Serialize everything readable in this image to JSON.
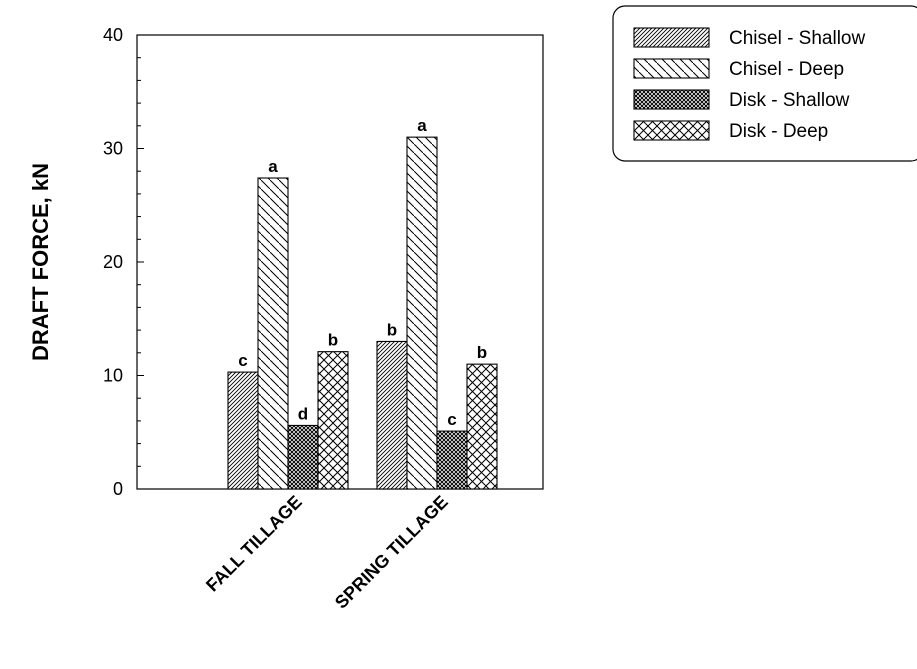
{
  "chart_data": {
    "type": "bar",
    "title": "",
    "xlabel": "",
    "ylabel": "DRAFT FORCE, kN",
    "ylim": [
      0,
      40
    ],
    "yticks": [
      0,
      10,
      20,
      30,
      40
    ],
    "categories": [
      "FALL TILLAGE",
      "SPRING TILLAGE"
    ],
    "series": [
      {
        "name": "Chisel - Shallow",
        "values": [
          10.3,
          13.0
        ],
        "letters": [
          "c",
          "b"
        ],
        "pattern": "hatch-fine-diagonal"
      },
      {
        "name": "Chisel - Deep",
        "values": [
          27.4,
          31.0
        ],
        "letters": [
          "a",
          "a"
        ],
        "pattern": "hatch-back-diagonal"
      },
      {
        "name": "Disk - Shallow",
        "values": [
          5.6,
          5.1
        ],
        "letters": [
          "d",
          "c"
        ],
        "pattern": "crosshatch-dense"
      },
      {
        "name": "Disk - Deep",
        "values": [
          12.1,
          11.0
        ],
        "letters": [
          "b",
          "b"
        ],
        "pattern": "crosshatch-open"
      }
    ],
    "legend_position": "top-right",
    "grid": false,
    "colors": {
      "stroke": "#000000",
      "fill": "#ffffff"
    }
  }
}
